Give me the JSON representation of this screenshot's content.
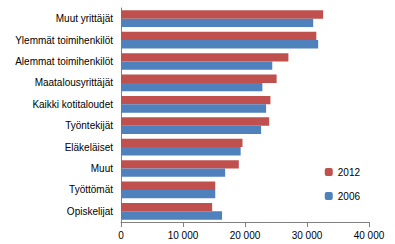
{
  "chart_data": {
    "type": "bar",
    "orientation": "horizontal",
    "categories": [
      "Muut yrittäjät",
      "Ylemmät toimihenkilöt",
      "Alemmat toimihenkilöt",
      "Maatalousyrittäjät",
      "Kaikki kotitaloudet",
      "Työntekijät",
      "Eläkeläiset",
      "Muut",
      "Työttömät",
      "Opiskelijat"
    ],
    "series": [
      {
        "name": "2012",
        "color": "#c0504d",
        "values": [
          32600,
          31500,
          27000,
          25100,
          24100,
          23900,
          19600,
          19000,
          15200,
          14700
        ]
      },
      {
        "name": "2006",
        "color": "#4f81bd",
        "values": [
          31000,
          31800,
          24400,
          22800,
          23400,
          22600,
          19300,
          16800,
          15200,
          16300
        ]
      }
    ],
    "xlim": [
      0,
      40000
    ],
    "xticks": [
      0,
      {
        "value": 10000,
        "label": "10 000"
      },
      {
        "value": 20000,
        "label": "20 000"
      },
      {
        "value": 30000,
        "label": "30 000"
      },
      {
        "value": 40000,
        "label": "40 000"
      }
    ],
    "grid": false,
    "legend": "lower right"
  }
}
